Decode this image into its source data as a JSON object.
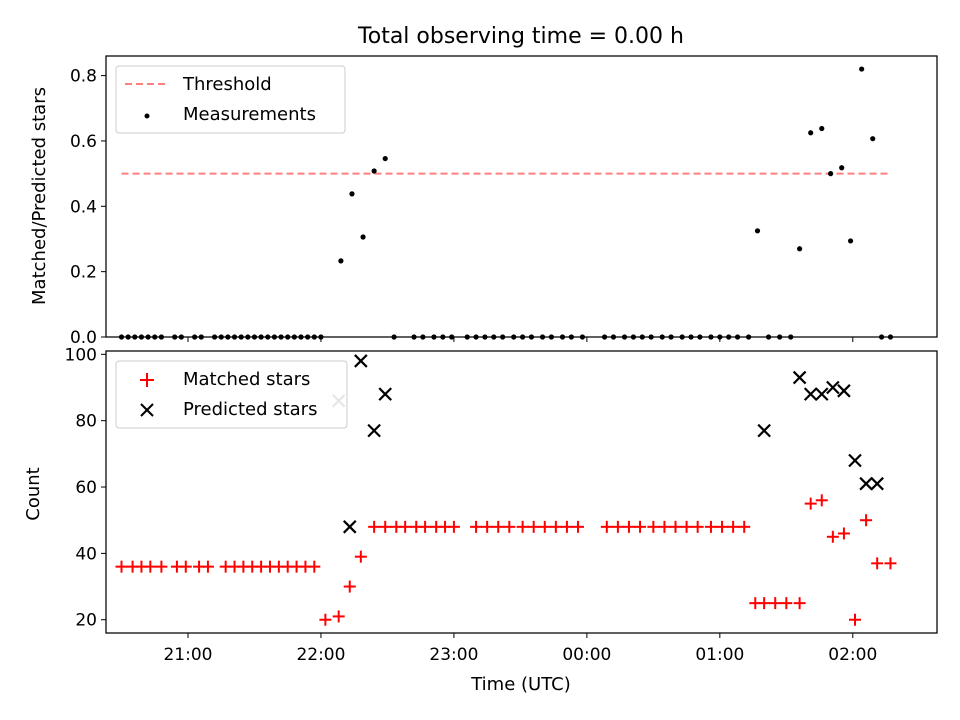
{
  "chart_data": [
    {
      "type": "scatter",
      "title": "Total observing time = 0.00 h",
      "ylabel": "Matched/Predicted stars",
      "xlabel": "",
      "x_unit": "time UTC",
      "xlim": [
        "20:23",
        "02:38"
      ],
      "ylim": [
        0,
        0.86
      ],
      "yticks": [
        "0.0",
        "0.2",
        "0.4",
        "0.6",
        "0.8"
      ],
      "legend_position": "upper left",
      "grid": false,
      "series": [
        {
          "name": "Threshold",
          "kind": "dashed-line",
          "color": "#ff7f7f",
          "x": [
            "20:30",
            "02:17"
          ],
          "y": [
            0.5,
            0.5
          ]
        },
        {
          "name": "Measurements",
          "kind": "points",
          "color": "#000000",
          "x": [
            "20:30",
            "20:33",
            "20:36",
            "20:39",
            "20:42",
            "20:45",
            "20:48",
            "20:54",
            "20:57",
            "21:03",
            "21:06",
            "21:12",
            "21:15",
            "21:18",
            "21:21",
            "21:24",
            "21:27",
            "21:30",
            "21:33",
            "21:36",
            "21:39",
            "21:42",
            "21:45",
            "21:48",
            "21:51",
            "21:54",
            "21:57",
            "22:00",
            "22:09",
            "22:14",
            "22:19",
            "22:24",
            "22:29",
            "22:33",
            "22:42",
            "22:46",
            "22:51",
            "22:55",
            "22:59",
            "23:06",
            "23:10",
            "23:14",
            "23:18",
            "23:22",
            "23:27",
            "23:31",
            "23:35",
            "23:40",
            "23:44",
            "23:49",
            "23:53",
            "23:58",
            "00:08",
            "00:12",
            "00:17",
            "00:21",
            "00:25",
            "00:29",
            "00:34",
            "00:38",
            "00:43",
            "00:47",
            "00:51",
            "00:56",
            "01:00",
            "01:04",
            "01:08",
            "01:13",
            "01:17",
            "01:22",
            "01:27",
            "01:32",
            "01:36",
            "01:41",
            "01:46",
            "01:50",
            "01:55",
            "01:59",
            "02:04",
            "02:09",
            "02:13",
            "02:17"
          ],
          "y": [
            0,
            0,
            0,
            0,
            0,
            0,
            0,
            0,
            0,
            0,
            0,
            0,
            0,
            0,
            0,
            0,
            0,
            0,
            0,
            0,
            0,
            0,
            0,
            0,
            0,
            0,
            0,
            0,
            0.233,
            0.438,
            0.306,
            0.508,
            0.546,
            0,
            0,
            0,
            0,
            0,
            0,
            0,
            0,
            0,
            0,
            0,
            0,
            0,
            0,
            0,
            0,
            0,
            0,
            0,
            0,
            0,
            0,
            0,
            0,
            0,
            0,
            0,
            0,
            0,
            0,
            0,
            0,
            0,
            0,
            0,
            0.325,
            0,
            0,
            0,
            0.27,
            0.625,
            0.638,
            0.5,
            0.518,
            0.294,
            0.82,
            0.607,
            0,
            0
          ]
        }
      ]
    },
    {
      "type": "scatter",
      "xlabel": "Time (UTC)",
      "ylabel": "Count",
      "xlim": [
        "20:23",
        "02:38"
      ],
      "ylim": [
        16,
        101
      ],
      "yticks": [
        "20",
        "40",
        "60",
        "80",
        "100"
      ],
      "xticks": [
        "21:00",
        "22:00",
        "23:00",
        "00:00",
        "01:00",
        "02:00"
      ],
      "legend_position": "upper left",
      "grid": false,
      "series": [
        {
          "name": "Matched stars",
          "kind": "plus",
          "color": "#ff0000",
          "x": [
            "20:30",
            "20:35",
            "20:39",
            "20:43",
            "20:48",
            "20:55",
            "20:59",
            "21:05",
            "21:09",
            "21:17",
            "21:21",
            "21:25",
            "21:29",
            "21:33",
            "21:37",
            "21:41",
            "21:45",
            "21:49",
            "21:53",
            "21:57",
            "22:02",
            "22:08",
            "22:13",
            "22:18",
            "22:24",
            "22:29",
            "22:34",
            "22:38",
            "22:43",
            "22:47",
            "22:52",
            "22:56",
            "23:00",
            "23:10",
            "23:15",
            "23:20",
            "23:25",
            "23:31",
            "23:36",
            "23:41",
            "23:46",
            "23:51",
            "23:56",
            "00:09",
            "00:14",
            "00:19",
            "00:24",
            "00:30",
            "00:35",
            "00:40",
            "00:45",
            "00:50",
            "00:56",
            "01:01",
            "01:06",
            "01:11",
            "01:16",
            "01:20",
            "01:25",
            "01:30",
            "01:36",
            "01:41",
            "01:46",
            "01:51",
            "01:56",
            "02:01",
            "02:06",
            "02:11",
            "02:17"
          ],
          "y": [
            36,
            36,
            36,
            36,
            36,
            36,
            36,
            36,
            36,
            36,
            36,
            36,
            36,
            36,
            36,
            36,
            36,
            36,
            36,
            36,
            20,
            21,
            30,
            39,
            48,
            48,
            48,
            48,
            48,
            48,
            48,
            48,
            48,
            48,
            48,
            48,
            48,
            48,
            48,
            48,
            48,
            48,
            48,
            48,
            48,
            48,
            48,
            48,
            48,
            48,
            48,
            48,
            48,
            48,
            48,
            48,
            25,
            25,
            25,
            25,
            25,
            55,
            56,
            45,
            46,
            20,
            50,
            37,
            37
          ]
        },
        {
          "name": "Predicted stars",
          "kind": "x",
          "color": "#000000",
          "x": [
            "22:08",
            "22:13",
            "22:18",
            "22:24",
            "22:29",
            "01:20",
            "01:36",
            "01:41",
            "01:46",
            "01:51",
            "01:56",
            "02:01",
            "02:06",
            "02:11"
          ],
          "y": [
            86,
            48,
            98,
            77,
            88,
            77,
            93,
            88,
            88,
            90,
            89,
            68,
            61,
            61
          ]
        }
      ]
    }
  ]
}
